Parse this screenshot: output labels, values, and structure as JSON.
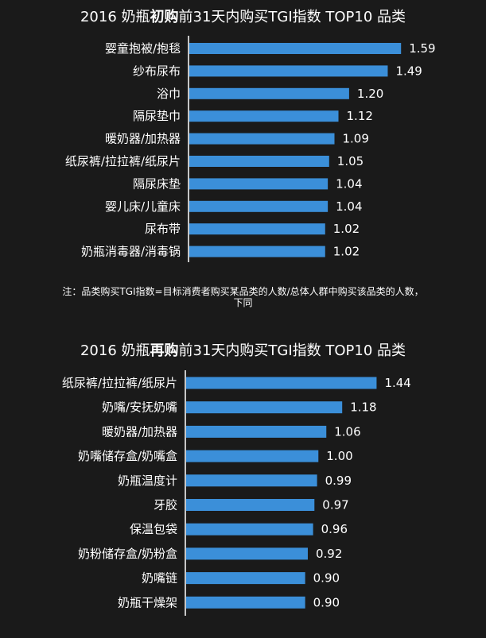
{
  "bar_color": "#3b8fd9",
  "axis_color": "#ffffff",
  "chart_data": [
    {
      "type": "bar",
      "orientation": "horizontal",
      "title": "2016 奶瓶初购前31天内购买TGI指数 TOP10 品类",
      "title_parts": {
        "pre": "2016 奶瓶",
        "bold": "初购",
        "post": "前31天内购买TGI指数 TOP10 品类"
      },
      "categories": [
        "婴童抱被/抱毯",
        "纱布尿布",
        "浴巾",
        "隔尿垫巾",
        "暖奶器/加热器",
        "纸尿裤/拉拉裤/纸尿片",
        "隔尿床垫",
        "婴儿床/儿童床",
        "尿布带",
        "奶瓶消毒器/消毒锅"
      ],
      "values": [
        1.59,
        1.49,
        1.2,
        1.12,
        1.09,
        1.05,
        1.04,
        1.04,
        1.02,
        1.02
      ],
      "labels": [
        "1.59",
        "1.49",
        "1.20",
        "1.12",
        "1.09",
        "1.05",
        "1.04",
        "1.04",
        "1.02",
        "1.02"
      ],
      "xlim": [
        0,
        1.75
      ]
    },
    {
      "type": "bar",
      "orientation": "horizontal",
      "title": "2016 奶瓶再购前31天内购买TGI指数 TOP10 品类",
      "title_parts": {
        "pre": "2016 奶瓶",
        "bold": "再购",
        "post": "前31天内购买TGI指数 TOP10 品类"
      },
      "categories": [
        "纸尿裤/拉拉裤/纸尿片",
        "奶嘴/安抚奶嘴",
        "暖奶器/加热器",
        "奶嘴储存盒/奶嘴盒",
        "奶瓶温度计",
        "牙胶",
        "保温包袋",
        "奶粉储存盒/奶粉盒",
        "奶嘴链",
        "奶瓶干燥架"
      ],
      "values": [
        1.44,
        1.18,
        1.06,
        1.0,
        0.99,
        0.97,
        0.96,
        0.92,
        0.9,
        0.9
      ],
      "labels": [
        "1.44",
        "1.18",
        "1.06",
        "1.00",
        "0.99",
        "0.97",
        "0.96",
        "0.92",
        "0.90",
        "0.90"
      ],
      "xlim": [
        0,
        1.72
      ]
    }
  ],
  "note": {
    "line1": "注：品类购买TGI指数=目标消费者购买某品类的人数/总体人群中购买该品类的人数，",
    "line2": "下同"
  }
}
